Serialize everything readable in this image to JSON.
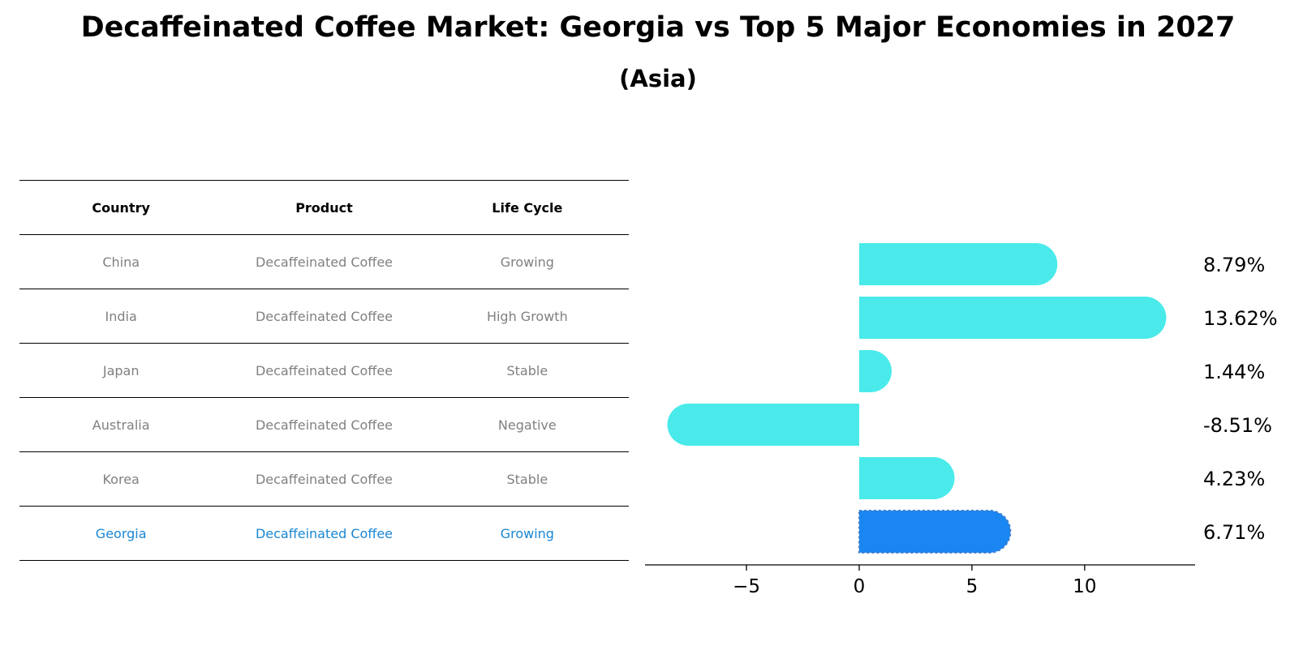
{
  "title": "Decaffeinated Coffee Market: Georgia vs Top 5 Major Economies in 2027",
  "subtitle": "(Asia)",
  "table": {
    "headers": [
      "Country",
      "Product",
      "Life Cycle"
    ],
    "rows": [
      {
        "country": "China",
        "product": "Decaffeinated Coffee",
        "life_cycle": "Growing",
        "highlight": false
      },
      {
        "country": "India",
        "product": "Decaffeinated Coffee",
        "life_cycle": "High Growth",
        "highlight": false
      },
      {
        "country": "Japan",
        "product": "Decaffeinated Coffee",
        "life_cycle": "Stable",
        "highlight": false
      },
      {
        "country": "Australia",
        "product": "Decaffeinated Coffee",
        "life_cycle": "Negative",
        "highlight": false
      },
      {
        "country": "Korea",
        "product": "Decaffeinated Coffee",
        "life_cycle": "Stable",
        "highlight": false
      },
      {
        "country": "Georgia",
        "product": "Decaffeinated Coffee",
        "life_cycle": "Growing",
        "highlight": true
      }
    ]
  },
  "colors": {
    "bar": "#4aeaea",
    "highlight_bar": "#1a86f2",
    "highlight_text": "#1a86d4",
    "muted_text": "#808080"
  },
  "chart_data": {
    "type": "bar",
    "orientation": "horizontal",
    "categories": [
      "China",
      "India",
      "Japan",
      "Australia",
      "Korea",
      "Georgia"
    ],
    "values": [
      8.79,
      13.62,
      1.44,
      -8.51,
      4.23,
      6.71
    ],
    "value_labels": [
      "8.79%",
      "13.62%",
      "1.44%",
      "-8.51%",
      "4.23%",
      "6.71%"
    ],
    "highlight_category": "Georgia",
    "xlim": [
      -9.5,
      14.9
    ],
    "xticks": [
      -5,
      0,
      5,
      10
    ],
    "xtick_labels": [
      "−5",
      "0",
      "5",
      "10"
    ],
    "xlabel": "",
    "ylabel": "",
    "grid": false
  }
}
